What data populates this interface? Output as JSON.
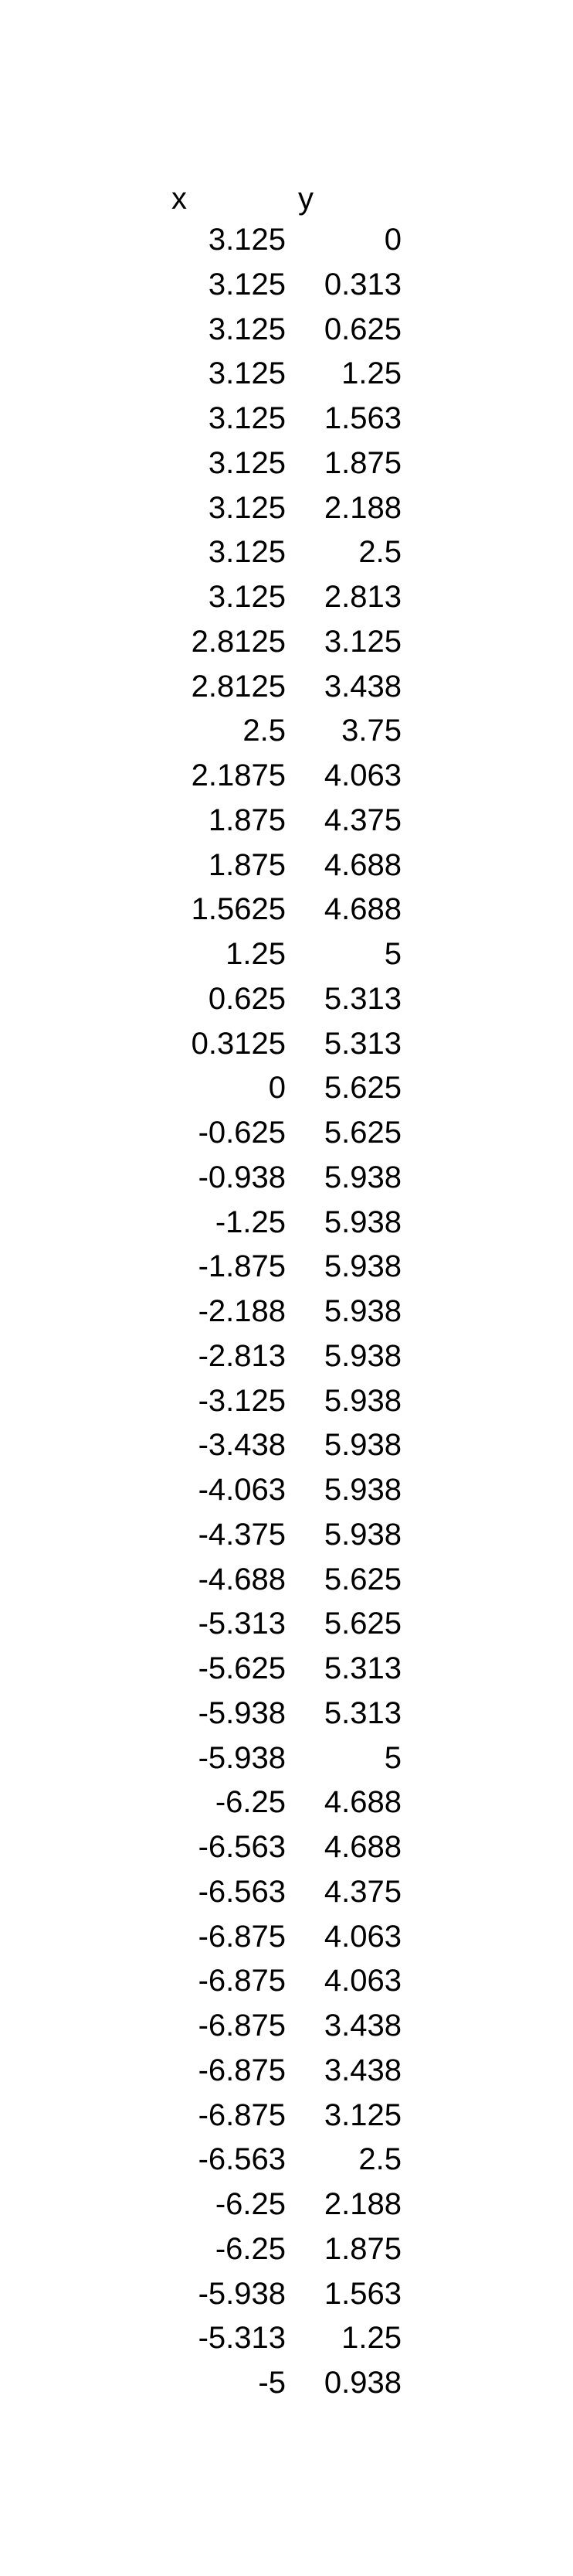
{
  "columns": {
    "x_header": "x",
    "y_header": "y"
  },
  "rows": [
    {
      "x": "3.125",
      "y": "0"
    },
    {
      "x": "3.125",
      "y": "0.313"
    },
    {
      "x": "3.125",
      "y": "0.625"
    },
    {
      "x": "3.125",
      "y": "1.25"
    },
    {
      "x": "3.125",
      "y": "1.563"
    },
    {
      "x": "3.125",
      "y": "1.875"
    },
    {
      "x": "3.125",
      "y": "2.188"
    },
    {
      "x": "3.125",
      "y": "2.5"
    },
    {
      "x": "3.125",
      "y": "2.813"
    },
    {
      "x": "2.8125",
      "y": "3.125"
    },
    {
      "x": "2.8125",
      "y": "3.438"
    },
    {
      "x": "2.5",
      "y": "3.75"
    },
    {
      "x": "2.1875",
      "y": "4.063"
    },
    {
      "x": "1.875",
      "y": "4.375"
    },
    {
      "x": "1.875",
      "y": "4.688"
    },
    {
      "x": "1.5625",
      "y": "4.688"
    },
    {
      "x": "1.25",
      "y": "5"
    },
    {
      "x": "0.625",
      "y": "5.313"
    },
    {
      "x": "0.3125",
      "y": "5.313"
    },
    {
      "x": "0",
      "y": "5.625"
    },
    {
      "x": "-0.625",
      "y": "5.625"
    },
    {
      "x": "-0.938",
      "y": "5.938"
    },
    {
      "x": "-1.25",
      "y": "5.938"
    },
    {
      "x": "-1.875",
      "y": "5.938"
    },
    {
      "x": "-2.188",
      "y": "5.938"
    },
    {
      "x": "-2.813",
      "y": "5.938"
    },
    {
      "x": "-3.125",
      "y": "5.938"
    },
    {
      "x": "-3.438",
      "y": "5.938"
    },
    {
      "x": "-4.063",
      "y": "5.938"
    },
    {
      "x": "-4.375",
      "y": "5.938"
    },
    {
      "x": "-4.688",
      "y": "5.625"
    },
    {
      "x": "-5.313",
      "y": "5.625"
    },
    {
      "x": "-5.625",
      "y": "5.313"
    },
    {
      "x": "-5.938",
      "y": "5.313"
    },
    {
      "x": "-5.938",
      "y": "5"
    },
    {
      "x": "-6.25",
      "y": "4.688"
    },
    {
      "x": "-6.563",
      "y": "4.688"
    },
    {
      "x": "-6.563",
      "y": "4.375"
    },
    {
      "x": "-6.875",
      "y": "4.063"
    },
    {
      "x": "-6.875",
      "y": "4.063"
    },
    {
      "x": "-6.875",
      "y": "3.438"
    },
    {
      "x": "-6.875",
      "y": "3.438"
    },
    {
      "x": "-6.875",
      "y": "3.125"
    },
    {
      "x": "-6.563",
      "y": "2.5"
    },
    {
      "x": "-6.25",
      "y": "2.188"
    },
    {
      "x": "-6.25",
      "y": "1.875"
    },
    {
      "x": "-5.938",
      "y": "1.563"
    },
    {
      "x": "-5.313",
      "y": "1.25"
    },
    {
      "x": "-5",
      "y": "0.938"
    }
  ]
}
